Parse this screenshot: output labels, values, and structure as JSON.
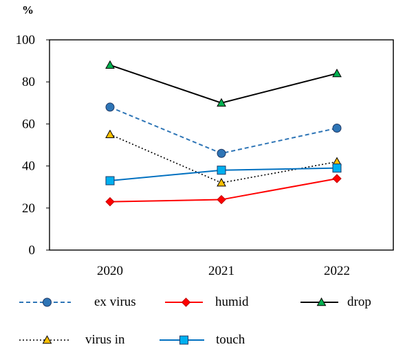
{
  "chart_data": {
    "type": "line",
    "title": "",
    "xlabel": "",
    "ylabel": "%",
    "categories": [
      "2020",
      "2021",
      "2022"
    ],
    "ylim": [
      0,
      100
    ],
    "yticks": [
      "0",
      "20",
      "40",
      "60",
      "80",
      "100"
    ],
    "grid": false,
    "legend_position": "bottom",
    "series": [
      {
        "name": "ex virus",
        "values": [
          68,
          46,
          58
        ],
        "color": "#2e75b6",
        "line_style": "dashed",
        "marker": "circle",
        "marker_color": "#2e75b6"
      },
      {
        "name": "humid",
        "values": [
          23,
          24,
          34
        ],
        "color": "#ff0000",
        "line_style": "solid",
        "marker": "diamond",
        "marker_color": "#ff0000"
      },
      {
        "name": "drop",
        "values": [
          88,
          70,
          84
        ],
        "color": "#000000",
        "line_style": "solid",
        "marker": "triangle",
        "marker_color": "#00b050"
      },
      {
        "name": "virus in",
        "values": [
          55,
          32,
          42
        ],
        "color": "#000000",
        "line_style": "dotted",
        "marker": "triangle",
        "marker_color": "#ffc000"
      },
      {
        "name": "touch",
        "values": [
          33,
          38,
          39
        ],
        "color": "#0070c0",
        "line_style": "solid",
        "marker": "square",
        "marker_color": "#00b0f0"
      }
    ]
  }
}
